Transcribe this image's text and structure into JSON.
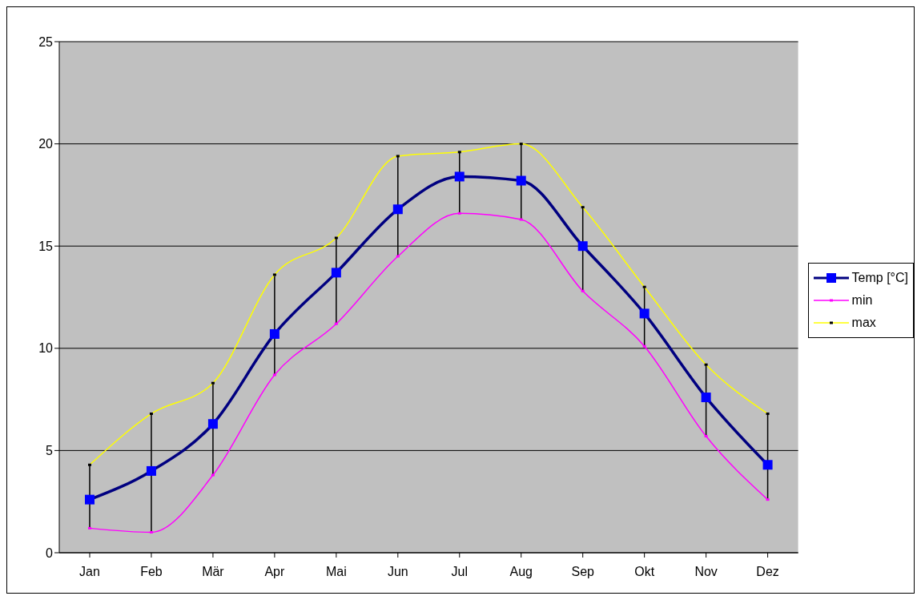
{
  "chart_data": {
    "type": "line",
    "categories": [
      "Jan",
      "Feb",
      "Mär",
      "Apr",
      "Mai",
      "Jun",
      "Jul",
      "Aug",
      "Sep",
      "Okt",
      "Nov",
      "Dez"
    ],
    "series": [
      {
        "name": "Temp [°C]",
        "color": "#000080",
        "colors": [
          "#0000ff",
          "#0000ff",
          "#0000ff",
          "#0000ff",
          "#0000ff",
          "#0000ff",
          "#0000ff",
          "#0000ff",
          "#0000ff",
          "#0000ff",
          "#0000ff",
          "#0000ff"
        ],
        "marker": "square",
        "values": [
          2.6,
          4.0,
          6.3,
          10.7,
          13.7,
          16.8,
          18.4,
          18.2,
          15.0,
          11.7,
          7.6,
          4.3
        ],
        "errors": [
          [
            1.2,
            4.3
          ],
          [
            1.0,
            6.8
          ],
          [
            3.8,
            8.3
          ],
          [
            8.7,
            13.6
          ],
          [
            11.2,
            15.4
          ],
          [
            14.5,
            19.4
          ],
          [
            16.6,
            19.6
          ],
          [
            16.3,
            20.0
          ],
          [
            12.8,
            16.9
          ],
          [
            10.1,
            13.0
          ],
          [
            5.7,
            9.2
          ],
          [
            2.6,
            6.8
          ]
        ]
      },
      {
        "name": "min",
        "color": "#ff00ff",
        "marker": "square",
        "values": [
          1.2,
          1.0,
          3.8,
          8.7,
          11.2,
          14.5,
          16.6,
          16.3,
          12.8,
          10.1,
          5.7,
          2.6
        ]
      },
      {
        "name": "max",
        "color": "#ffff00",
        "colors": [
          "#000000",
          "#000000",
          "#000000",
          "#000000",
          "#000000",
          "#000000",
          "#000000",
          "#000000",
          "#000000",
          "#000000",
          "#000000",
          "#000000"
        ],
        "marker": "square",
        "values": [
          4.3,
          6.8,
          8.3,
          13.6,
          15.4,
          19.4,
          19.6,
          20.0,
          16.9,
          13.0,
          9.2,
          6.8
        ]
      }
    ],
    "ylim": [
      0,
      25
    ],
    "yticks": [
      0,
      5,
      10,
      15,
      20,
      25
    ],
    "grid": "y",
    "legend": "right"
  }
}
